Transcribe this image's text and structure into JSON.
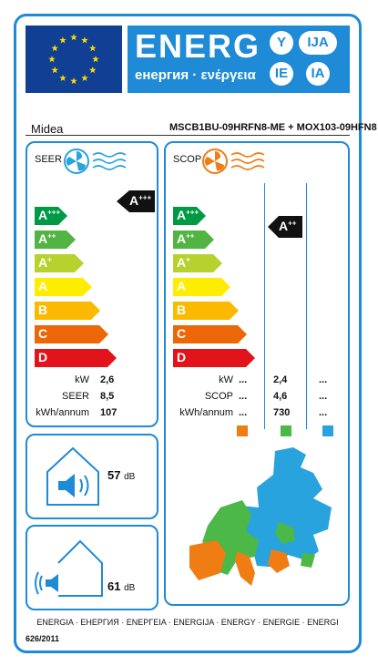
{
  "header": {
    "title": "ENERG",
    "subtitle": "енергия · ενέργεια",
    "lang_codes": [
      "Y",
      "IJA",
      "IE",
      "IA"
    ]
  },
  "supplier": "Midea",
  "model": "MSCB1BU-09HRFN8-ME + MOX103-09HFN8",
  "cooling": {
    "label": "SEER",
    "classes": [
      "A+++",
      "A++",
      "A+",
      "A",
      "B",
      "C",
      "D"
    ],
    "indicator": "A+++",
    "rows": [
      {
        "label": "kW",
        "value": "2,6"
      },
      {
        "label": "SEER",
        "value": "8,5"
      },
      {
        "label": "kWh/annum",
        "value": "107"
      }
    ]
  },
  "heating": {
    "label": "SCOP",
    "classes": [
      "A+++",
      "A++",
      "A+",
      "A",
      "B",
      "C",
      "D"
    ],
    "indicator": "A++",
    "rows": [
      {
        "label": "kW",
        "v1": "...",
        "v2": "2,4",
        "v3": "..."
      },
      {
        "label": "SCOP",
        "v1": "...",
        "v2": "4,6",
        "v3": "..."
      },
      {
        "label": "kWh/annum",
        "v1": "...",
        "v2": "730",
        "v3": "..."
      }
    ],
    "zone_colors": [
      "#ef7d14",
      "#4cb847",
      "#29a3dd"
    ]
  },
  "noise": [
    {
      "value": "57",
      "unit": "dB"
    },
    {
      "value": "61",
      "unit": "dB"
    }
  ],
  "footer": {
    "energy_words": "ENERGIA · ЕНЕРГИЯ · ΕΝΕΡΓΕΙΑ · ENERGIJA · ENERGY · ENERGIE · ENERGI",
    "regulation": "626/2011"
  },
  "colors": {
    "border": "#1f8ad6",
    "flag": "#103f93",
    "scale": [
      "#009a44",
      "#52b442",
      "#b7d22e",
      "#ffed00",
      "#fbb900",
      "#ec6707",
      "#e3131b"
    ]
  }
}
